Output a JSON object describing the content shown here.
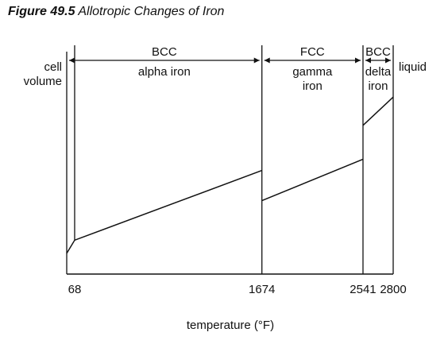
{
  "caption": {
    "number": "Figure 49.5",
    "title": "Allotropic Changes of Iron"
  },
  "chart_data": {
    "type": "line",
    "title": "Allotropic Changes of Iron",
    "xlabel": "temperature (°F)",
    "ylabel_lines": [
      "cell",
      "volume"
    ],
    "xlim": [
      0,
      2800
    ],
    "ylim": [
      0,
      100
    ],
    "ticks": [
      68,
      1674,
      2541,
      2800
    ],
    "tick_labels": [
      "68",
      "1674",
      "2541",
      "2800"
    ],
    "phase_boundaries": [
      68,
      1674,
      2541,
      2800
    ],
    "phases": [
      {
        "structure": "BCC",
        "name_lines": [
          "alpha iron"
        ],
        "x_start": 0,
        "x_end": 1674
      },
      {
        "structure": "FCC",
        "name_lines": [
          "gamma",
          "iron"
        ],
        "x_start": 1674,
        "x_end": 2541
      },
      {
        "structure": "BCC",
        "name_lines": [
          "delta",
          "iron"
        ],
        "x_start": 2541,
        "x_end": 2800
      }
    ],
    "liquid_label": "liquid",
    "series": [
      {
        "x": [
          0,
          68,
          1674
        ],
        "y": [
          11,
          18,
          55
        ]
      },
      {
        "x": [
          1674,
          2541
        ],
        "y": [
          39,
          61
        ]
      },
      {
        "x": [
          2541,
          2800
        ],
        "y": [
          79,
          94
        ]
      }
    ],
    "grid": false,
    "legend": "none",
    "colors": {
      "line": "#111111",
      "background": "#ffffff"
    }
  }
}
